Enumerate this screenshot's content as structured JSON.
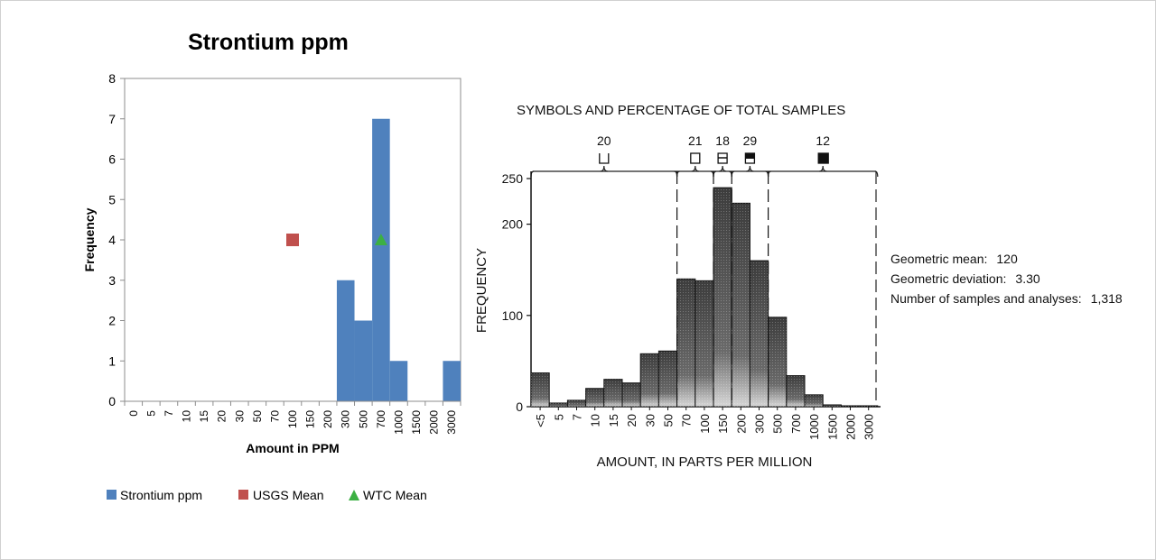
{
  "chart_data": [
    {
      "type": "bar",
      "title": "Strontium ppm",
      "xlabel": "Amount in PPM",
      "ylabel": "Frequency",
      "ylim": [
        0,
        8
      ],
      "y_ticks": [
        "0",
        "1",
        "2",
        "3",
        "4",
        "5",
        "6",
        "7",
        "8"
      ],
      "categories": [
        "0",
        "5",
        "7",
        "10",
        "15",
        "20",
        "30",
        "50",
        "70",
        "100",
        "150",
        "200",
        "300",
        "500",
        "700",
        "1000",
        "1500",
        "2000",
        "3000"
      ],
      "series": [
        {
          "name": "Strontium ppm",
          "color": "#4f81bd",
          "values": [
            0,
            0,
            0,
            0,
            0,
            0,
            0,
            0,
            0,
            0,
            0,
            0,
            3,
            2,
            7,
            1,
            0,
            0,
            1
          ]
        }
      ],
      "markers": [
        {
          "name": "USGS Mean",
          "color": "#c0504d",
          "shape": "square",
          "category": "100",
          "y": 4
        },
        {
          "name": "WTC Mean",
          "color": "#3cb043",
          "shape": "triangle",
          "category": "700",
          "y": 4
        }
      ],
      "legend_position": "bottom",
      "grid": false
    },
    {
      "type": "bar",
      "title": "SYMBOLS AND PERCENTAGE OF TOTAL SAMPLES",
      "xlabel": "AMOUNT, IN PARTS PER MILLION",
      "ylabel": "FREQUENCY",
      "ylim": [
        0,
        250
      ],
      "y_ticks": [
        "0",
        "100",
        "200",
        "250"
      ],
      "categories": [
        "<5",
        "5",
        "7",
        "10",
        "15",
        "20",
        "30",
        "50",
        "70",
        "100",
        "150",
        "200",
        "300",
        "500",
        "700",
        "1000",
        "1500",
        "2000",
        "3000"
      ],
      "series": [
        {
          "color": "#5a5a5a",
          "values": [
            37,
            4,
            7,
            20,
            30,
            26,
            58,
            61,
            140,
            138,
            240,
            223,
            160,
            98,
            34,
            13,
            2,
            1,
            1
          ]
        }
      ],
      "symbol_groups": [
        {
          "label": "20",
          "symbol": "open-bracket",
          "from": "<5",
          "to": "50"
        },
        {
          "label": "21",
          "symbol": "open-square",
          "from": "70",
          "to": "100"
        },
        {
          "label": "18",
          "symbol": "square-one-line",
          "from": "150",
          "to": "150"
        },
        {
          "label": "29",
          "symbol": "square-half",
          "from": "200",
          "to": "300"
        },
        {
          "label": "12",
          "symbol": "filled-square",
          "from": "500",
          "to": "3000"
        }
      ],
      "stats": [
        {
          "label": "Geometric mean:",
          "value": "120"
        },
        {
          "label": "Geometric deviation:",
          "value": "3.30"
        },
        {
          "label": "Number of samples and analyses:",
          "value": "1,318"
        }
      ],
      "grid": false
    }
  ]
}
